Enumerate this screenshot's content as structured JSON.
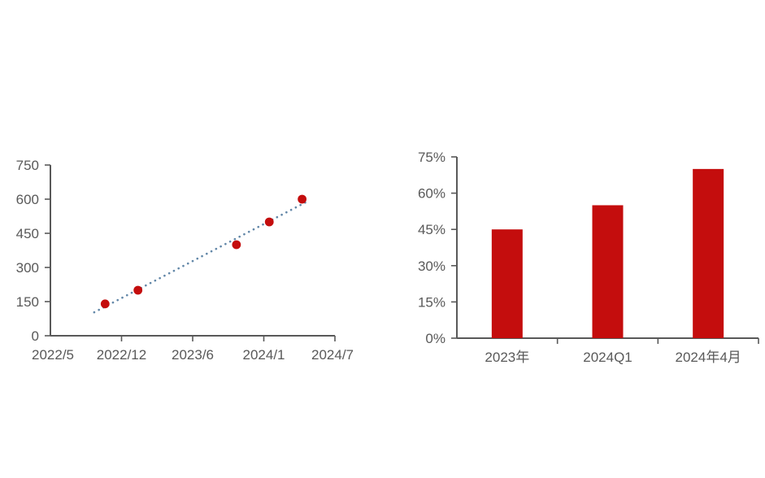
{
  "page": {
    "background": "#ffffff"
  },
  "chart_data": [
    {
      "type": "scatter",
      "title": "",
      "xlabel": "",
      "ylabel": "",
      "grid": false,
      "legend": "none",
      "x_axis": {
        "tick_labels": [
          "2022/5",
          "2022/12",
          "2023/6",
          "2024/1",
          "2024/7"
        ],
        "start": "2022/5",
        "end": "2024/7",
        "months_span": 26
      },
      "y_axis": {
        "ticks": [
          0,
          150,
          300,
          450,
          600,
          750
        ],
        "ylim": [
          0,
          750
        ]
      },
      "points": [
        {
          "x": "2022/10",
          "month_offset": 5,
          "y": 140
        },
        {
          "x": "2023/1",
          "month_offset": 8,
          "y": 200
        },
        {
          "x": "2023/10",
          "month_offset": 17,
          "y": 400
        },
        {
          "x": "2024/1",
          "month_offset": 20,
          "y": 500
        },
        {
          "x": "2024/4",
          "month_offset": 23,
          "y": 600
        }
      ],
      "trendline": {
        "style": "dotted",
        "slope_per_month": 25,
        "intercept": 3,
        "month_start": 4,
        "month_end": 23.3,
        "color": "#6287A8"
      },
      "colors": {
        "point": "#C40D0D",
        "axis": "#595959",
        "text": "#595959"
      }
    },
    {
      "type": "bar",
      "title": "",
      "xlabel": "",
      "ylabel": "",
      "grid": false,
      "legend": "none",
      "categories": [
        "2023年",
        "2024Q1",
        "2024年4月"
      ],
      "values": [
        45,
        55,
        70
      ],
      "y_axis": {
        "tick_labels": [
          "0%",
          "15%",
          "30%",
          "45%",
          "60%",
          "75%"
        ],
        "ticks": [
          0,
          15,
          30,
          45,
          60,
          75
        ],
        "ylim": [
          0,
          75
        ]
      },
      "colors": {
        "bar": "#C40D0D",
        "axis": "#595959",
        "text": "#595959"
      }
    }
  ]
}
